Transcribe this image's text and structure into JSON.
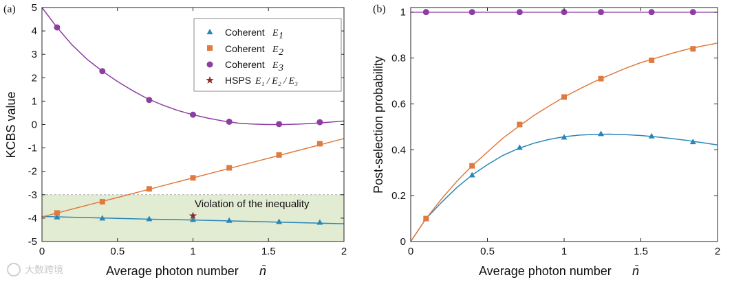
{
  "colors": {
    "e1": "#2a86b7",
    "e2": "#e07a3f",
    "e3": "#8c3fa0",
    "hsps": "#8b2e2e",
    "shade": "#e2ecd2",
    "shade_line": "#aaaaaa"
  },
  "watermark": "大数跨境",
  "chart_data": [
    {
      "type": "line",
      "panel_label": "(a)",
      "xlabel": "Average photon number",
      "xlabel_symbol": "n̄",
      "ylabel": "KCBS value",
      "xlim": [
        0,
        2
      ],
      "ylim": [
        -5,
        5
      ],
      "xticks": [
        "0",
        "0.5",
        "1",
        "1.5",
        "2"
      ],
      "yticks": [
        "-5",
        "-4",
        "-3",
        "-2",
        "-1",
        "0",
        "1",
        "2",
        "3",
        "4",
        "5"
      ],
      "shaded_region": {
        "y_from": -5,
        "y_to": -3,
        "label": "Violation of the inequality"
      },
      "legend": [
        {
          "name": "Coherent",
          "sub": "E",
          "idx": "1",
          "marker": "triangle"
        },
        {
          "name": "Coherent",
          "sub": "E",
          "idx": "2",
          "marker": "square"
        },
        {
          "name": "Coherent",
          "sub": "E",
          "idx": "3",
          "marker": "circle"
        },
        {
          "name": "HSPS",
          "sub": "E₁ / E₂ / E₃",
          "idx": "",
          "marker": "star"
        }
      ],
      "series": [
        {
          "name": "Coherent E1",
          "marker": "triangle",
          "points": {
            "x": [
              0.1,
              0.4,
              0.71,
              1.0,
              1.24,
              1.57,
              1.84
            ],
            "y": [
              -3.95,
              -4.0,
              -4.03,
              -4.06,
              -4.1,
              -4.15,
              -4.18
            ]
          },
          "curve": {
            "x": [
              0,
              0.25,
              0.5,
              0.75,
              1.0,
              1.25,
              1.5,
              1.75,
              2.0
            ],
            "y": [
              -3.93,
              -3.97,
              -4.01,
              -4.05,
              -4.08,
              -4.12,
              -4.16,
              -4.2,
              -4.24
            ]
          }
        },
        {
          "name": "Coherent E2",
          "marker": "square",
          "points": {
            "x": [
              0.1,
              0.4,
              0.71,
              1.0,
              1.24,
              1.57,
              1.84
            ],
            "y": [
              -3.78,
              -3.3,
              -2.75,
              -2.28,
              -1.85,
              -1.3,
              -0.82
            ]
          },
          "curve": {
            "x": [
              0,
              0.25,
              0.5,
              0.75,
              1.0,
              1.25,
              1.5,
              1.75,
              2.0
            ],
            "y": [
              -3.95,
              -3.53,
              -3.12,
              -2.7,
              -2.28,
              -1.86,
              -1.44,
              -1.02,
              -0.6
            ]
          }
        },
        {
          "name": "Coherent E3",
          "marker": "circle",
          "points": {
            "x": [
              0.1,
              0.4,
              0.71,
              1.0,
              1.24,
              1.57,
              1.84
            ],
            "y": [
              4.15,
              2.28,
              1.05,
              0.42,
              0.12,
              0.02,
              0.1
            ]
          },
          "curve": {
            "x": [
              0,
              0.1,
              0.2,
              0.3,
              0.4,
              0.5,
              0.6,
              0.7,
              0.8,
              0.9,
              1.0,
              1.1,
              1.2,
              1.3,
              1.4,
              1.5,
              1.6,
              1.7,
              1.8,
              1.9,
              2.0
            ],
            "y": [
              5.0,
              4.15,
              3.4,
              2.78,
              2.28,
              1.84,
              1.45,
              1.1,
              0.83,
              0.6,
              0.42,
              0.27,
              0.15,
              0.06,
              0.02,
              0.0,
              0.0,
              0.02,
              0.05,
              0.1,
              0.15
            ]
          }
        },
        {
          "name": "HSPS E1 / E2 / E3",
          "marker": "star",
          "points": {
            "x": [
              1.0
            ],
            "y": [
              -3.9
            ]
          }
        }
      ]
    },
    {
      "type": "line",
      "panel_label": "(b)",
      "xlabel": "Average photon number",
      "xlabel_symbol": "n̄",
      "ylabel": "Post-selection probability",
      "xlim": [
        0,
        2
      ],
      "ylim": [
        0,
        1.02
      ],
      "xticks": [
        "0",
        "0.5",
        "1",
        "1.5",
        "2"
      ],
      "yticks": [
        "0",
        "0.2",
        "0.4",
        "0.6",
        "0.8",
        "1"
      ],
      "series": [
        {
          "name": "Coherent E1",
          "marker": "triangle",
          "points": {
            "x": [
              0.1,
              0.4,
              0.71,
              1.0,
              1.24,
              1.57,
              1.84
            ],
            "y": [
              0.1,
              0.29,
              0.41,
              0.455,
              0.47,
              0.46,
              0.435
            ]
          },
          "curve": {
            "x": [
              0,
              0.1,
              0.2,
              0.3,
              0.4,
              0.5,
              0.6,
              0.7,
              0.8,
              0.9,
              1.0,
              1.1,
              1.2,
              1.3,
              1.4,
              1.5,
              1.6,
              1.7,
              1.8,
              1.9,
              2.0
            ],
            "y": [
              0,
              0.1,
              0.17,
              0.235,
              0.29,
              0.335,
              0.375,
              0.405,
              0.428,
              0.445,
              0.457,
              0.464,
              0.467,
              0.468,
              0.466,
              0.462,
              0.456,
              0.449,
              0.441,
              0.431,
              0.421
            ]
          }
        },
        {
          "name": "Coherent E2",
          "marker": "square",
          "points": {
            "x": [
              0.1,
              0.4,
              0.71,
              1.0,
              1.24,
              1.57,
              1.84
            ],
            "y": [
              0.1,
              0.33,
              0.51,
              0.63,
              0.71,
              0.79,
              0.84
            ]
          },
          "curve": {
            "x": [
              0,
              0.1,
              0.2,
              0.3,
              0.4,
              0.5,
              0.6,
              0.7,
              0.8,
              0.9,
              1.0,
              1.1,
              1.2,
              1.3,
              1.4,
              1.5,
              1.6,
              1.7,
              1.8,
              1.9,
              2.0
            ],
            "y": [
              0,
              0.1,
              0.185,
              0.262,
              0.33,
              0.39,
              0.45,
              0.5,
              0.548,
              0.59,
              0.63,
              0.665,
              0.698,
              0.727,
              0.755,
              0.78,
              0.8,
              0.82,
              0.838,
              0.852,
              0.865
            ]
          }
        },
        {
          "name": "Coherent E3",
          "marker": "circle",
          "points": {
            "x": [
              0.1,
              0.4,
              0.71,
              1.0,
              1.24,
              1.57,
              1.84
            ],
            "y": [
              1,
              1,
              1,
              1,
              1,
              1,
              1
            ]
          },
          "curve": {
            "x": [
              0,
              2
            ],
            "y": [
              1,
              1
            ]
          }
        }
      ]
    }
  ]
}
